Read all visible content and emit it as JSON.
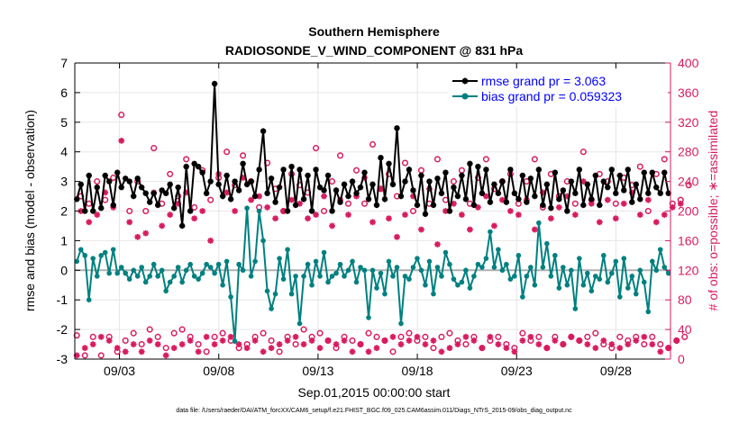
{
  "chart_data": {
    "type": "line",
    "title": "Southern Hemisphere",
    "subtitle": "RADIOSONDE_V_WIND_COMPONENT @ 831 hPa",
    "xlabel": "Sep.01,2015 00:00:00 start",
    "ylabel_left": "rmse and bias (model - observation)",
    "ylabel_right": "# of obs: o=possible; ∗=assimilated",
    "footnote": "data file: /Users/raeder/DAI/ATM_forcXX/CAM6_setup/f.e21.FHIST_BGC.f09_025.CAM6assim.011/Diags_NTrS_2015-09/obs_diag_output.nc",
    "xlim": [
      0.75,
      30.75
    ],
    "ylim_left": [
      -3,
      7
    ],
    "ylim_right": [
      0,
      400
    ],
    "x_ticks": [
      3,
      8,
      13,
      18,
      23,
      28
    ],
    "x_tick_labels": [
      "09/03",
      "09/08",
      "09/13",
      "09/18",
      "09/23",
      "09/28"
    ],
    "y_left_ticks": [
      -3,
      -2,
      -1,
      0,
      1,
      2,
      3,
      4,
      5,
      6,
      7
    ],
    "y_right_ticks": [
      0,
      40,
      80,
      120,
      160,
      200,
      240,
      280,
      320,
      360,
      400
    ],
    "grid": true,
    "legend_position": "top-right",
    "colors": {
      "rmse": "#000000",
      "bias": "#008080",
      "obs": "#d81b60",
      "zero_line": "#b0b0b0",
      "legend_text": "#0000ff"
    },
    "series": [
      {
        "name": "rmse grand pr = 3.063",
        "axis": "left",
        "marker": "asterisk",
        "values": [
          2.4,
          2.9,
          2.0,
          3.2,
          2.0,
          2.8,
          2.1,
          3.2,
          3.0,
          2.2,
          3.3,
          2.8,
          3.1,
          3.0,
          2.5,
          3.1,
          2.8,
          2.6,
          2.3,
          2.6,
          2.2,
          2.7,
          2.6,
          2.9,
          2.1,
          2.8,
          1.5,
          3.5,
          2.0,
          3.6,
          3.5,
          3.3,
          2.6,
          3.0,
          6.3,
          2.9,
          2.5,
          3.2,
          2.4,
          3.0,
          2.7,
          3.6,
          2.9,
          3.0,
          2.5,
          3.4,
          4.7,
          2.6,
          3.1,
          2.3,
          2.8,
          3.4,
          2.0,
          3.5,
          2.2,
          3.4,
          2.4,
          3.2,
          2.0,
          3.4,
          2.8,
          2.7,
          3.2,
          2.0,
          2.7,
          2.3,
          2.9,
          2.5,
          3.0,
          2.6,
          2.8,
          3.3,
          2.4,
          2.9,
          2.2,
          3.8,
          2.4,
          3.6,
          2.9,
          4.8,
          2.5,
          3.0,
          3.4,
          2.7,
          2.2,
          3.2,
          1.9,
          3.0,
          2.2,
          3.1,
          2.6,
          3.3,
          2.0,
          2.8,
          2.5,
          3.2,
          2.4,
          3.6,
          2.2,
          3.5,
          2.6,
          3.4,
          2.3,
          2.9,
          2.6,
          3.0,
          2.3,
          3.4,
          2.6,
          2.4,
          3.2,
          2.3,
          3.1,
          2.5,
          3.4,
          2.2,
          2.9,
          2.1,
          3.3,
          2.4,
          2.7,
          2.0,
          3.0,
          2.6,
          3.4,
          2.2,
          2.9,
          2.4,
          3.2,
          2.2,
          3.0,
          2.8,
          3.4,
          2.6,
          3.2,
          2.7,
          3.4,
          2.3,
          2.9,
          2.4,
          3.3,
          2.6,
          3.3,
          2.8,
          2.6,
          3.3,
          2.6
        ]
      },
      {
        "name": "bias grand pr = 0.059323",
        "axis": "left",
        "marker": "dot",
        "values": [
          0.3,
          0.7,
          0.5,
          -1.0,
          0.4,
          -0.2,
          0.5,
          0.6,
          -0.1,
          0.7,
          -0.1,
          0.1,
          -0.1,
          -0.3,
          0.0,
          -0.2,
          0.1,
          -0.4,
          -0.2,
          0.2,
          -0.2,
          0.0,
          -0.7,
          -0.4,
          -0.2,
          0.1,
          -0.4,
          0.0,
          0.2,
          -0.2,
          -0.3,
          -0.1,
          0.2,
          0.1,
          -0.1,
          0.2,
          -0.5,
          0.3,
          -0.9,
          -2.4,
          0.2,
          0.0,
          2.1,
          -0.2,
          0.3,
          2.0,
          1.0,
          -0.7,
          -1.3,
          -0.8,
          0.4,
          -0.3,
          0.7,
          -0.8,
          -0.2,
          -1.8,
          -0.2,
          0.2,
          -0.5,
          0.3,
          -0.2,
          0.6,
          -0.4,
          -0.2,
          -0.1,
          0.2,
          -0.2,
          0.0,
          0.3,
          -0.4,
          0.1,
          0.0,
          -1.6,
          0.0,
          -0.6,
          -0.1,
          -0.8,
          0.3,
          -0.2,
          0.1,
          -1.8,
          -0.2,
          -0.3,
          0.1,
          0.4,
          0.0,
          -0.5,
          0.3,
          -0.8,
          0.1,
          -0.2,
          0.6,
          0.2,
          -0.3,
          -0.5,
          -0.4,
          0.0,
          -0.6,
          -0.2,
          0.2,
          0.1,
          0.4,
          1.3,
          0.1,
          0.7,
          0.0,
          0.2,
          -0.3,
          -0.2,
          0.5,
          -0.9,
          -0.2,
          0.1,
          -0.5,
          1.6,
          0.1,
          0.9,
          -0.2,
          0.5,
          -0.6,
          0.1,
          -0.5,
          0.0,
          -1.3,
          0.4,
          -0.5,
          -0.1,
          -0.7,
          -0.2,
          -0.3,
          0.5,
          -0.4,
          -0.1,
          0.3,
          -0.9,
          0.4,
          -0.6,
          -0.2,
          -0.8,
          0.0,
          -0.4,
          -1.4,
          0.3,
          0.0,
          0.7,
          0.1,
          -0.1
        ]
      },
      {
        "name": "possible",
        "axis": "right",
        "marker": "circle",
        "values": [
          32,
          220,
          5,
          210,
          30,
          240,
          5,
          215,
          30,
          245,
          10,
          330,
          25,
          200,
          35,
          240,
          20,
          200,
          40,
          285,
          30,
          210,
          15,
          250,
          35,
          220,
          40,
          270,
          30,
          205,
          20,
          255,
          10,
          215,
          30,
          245,
          35,
          280,
          25,
          235,
          15,
          275,
          20,
          240,
          30,
          205,
          35,
          265,
          25,
          230,
          10,
          200,
          30,
          250,
          20,
          235,
          40,
          225,
          30,
          285,
          35,
          200,
          25,
          240,
          15,
          275,
          30,
          210,
          25,
          255,
          20,
          210,
          35,
          290,
          30,
          230,
          25,
          250,
          10,
          220,
          30,
          265,
          35,
          200,
          25,
          255,
          30,
          210,
          15,
          270,
          30,
          215,
          35,
          240,
          25,
          255,
          20,
          210,
          30,
          245,
          15,
          270,
          25,
          230,
          30,
          240,
          20,
          250,
          15,
          210,
          35,
          240,
          25,
          270,
          30,
          205,
          15,
          250,
          30,
          220,
          20,
          240,
          30,
          210,
          25,
          280,
          30,
          215,
          35,
          250,
          20,
          240,
          15,
          210,
          30,
          245,
          25,
          235,
          30,
          260,
          20,
          200,
          30,
          250,
          20,
          270,
          15,
          210,
          25,
          215,
          30,
          235
        ]
      },
      {
        "name": "assimilated",
        "axis": "right",
        "marker": "asterisk",
        "values": [
          5,
          200,
          15,
          185,
          20,
          195,
          30,
          225,
          25,
          205,
          15,
          295,
          10,
          185,
          20,
          165,
          10,
          170,
          25,
          225,
          20,
          180,
          5,
          195,
          15,
          210,
          20,
          225,
          25,
          190,
          10,
          200,
          30,
          160,
          20,
          250,
          25,
          225,
          30,
          200,
          20,
          245,
          15,
          215,
          25,
          220,
          10,
          205,
          15,
          190,
          20,
          200,
          25,
          215,
          30,
          210,
          20,
          190,
          25,
          195,
          15,
          220,
          25,
          180,
          20,
          215,
          25,
          195,
          10,
          220,
          20,
          245,
          10,
          185,
          15,
          230,
          25,
          190,
          30,
          165,
          20,
          195,
          25,
          220,
          30,
          175,
          20,
          230,
          25,
          155,
          10,
          200,
          15,
          210,
          20,
          195,
          30,
          175,
          25,
          205,
          15,
          220,
          30,
          180,
          20,
          215,
          15,
          200,
          10,
          195,
          25,
          215,
          30,
          175,
          20,
          225,
          15,
          190,
          25,
          205,
          20,
          220,
          30,
          195,
          25,
          240,
          20,
          210,
          15,
          185,
          25,
          215,
          20,
          190,
          15,
          210,
          20,
          225,
          25,
          195,
          30,
          215,
          20,
          185,
          10,
          195,
          15,
          205,
          25,
          210
        ]
      }
    ]
  }
}
